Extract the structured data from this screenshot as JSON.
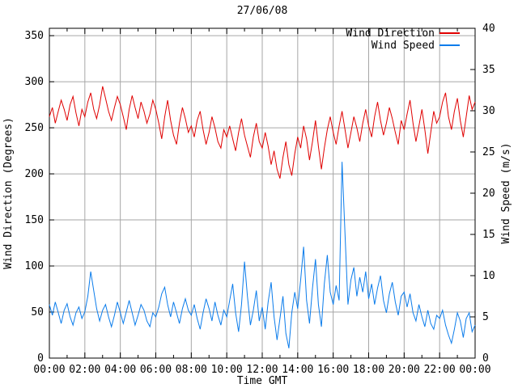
{
  "colors": {
    "background": "#ffffff",
    "frame": "#000000",
    "grid": "#a6a6a6",
    "direction_line": "#e00000",
    "speed_line": "#0b7ceb"
  },
  "chart_data": {
    "type": "line",
    "title": "27/06/08",
    "xlabel": "Time GMT",
    "ylabel_left": "Wind Direction (Degrees)",
    "ylabel_right": "Wind Speed (m/s)",
    "grid": true,
    "legend_position": "top-right-inside",
    "x_tick_labels": [
      "00:00",
      "02:00",
      "04:00",
      "06:00",
      "08:00",
      "10:00",
      "12:00",
      "14:00",
      "16:00",
      "18:00",
      "20:00",
      "22:00",
      "00:00"
    ],
    "x_minor_tick_every_minutes": 60,
    "x_range_minutes": [
      0,
      1440
    ],
    "x_step_minutes": 10,
    "y_left_ticks": [
      0,
      50,
      100,
      150,
      200,
      250,
      300,
      350
    ],
    "y_left_range": [
      0,
      358
    ],
    "y_right_ticks": [
      0,
      5,
      10,
      15,
      20,
      25,
      30,
      35,
      40
    ],
    "y_right_range": [
      0,
      40
    ],
    "series": [
      {
        "name": "Wind Direction",
        "axis": "left",
        "color": "#e00000",
        "values": [
          262,
          272,
          255,
          268,
          280,
          270,
          258,
          275,
          284,
          266,
          252,
          270,
          262,
          278,
          288,
          270,
          260,
          275,
          295,
          282,
          268,
          258,
          272,
          284,
          275,
          262,
          248,
          270,
          285,
          272,
          260,
          278,
          268,
          255,
          265,
          280,
          270,
          255,
          238,
          262,
          280,
          258,
          242,
          232,
          255,
          272,
          260,
          245,
          252,
          240,
          258,
          268,
          248,
          232,
          245,
          262,
          250,
          235,
          228,
          248,
          240,
          252,
          238,
          225,
          245,
          260,
          242,
          230,
          218,
          240,
          255,
          235,
          228,
          245,
          230,
          210,
          225,
          205,
          195,
          218,
          235,
          210,
          198,
          222,
          240,
          228,
          252,
          238,
          215,
          235,
          258,
          230,
          205,
          228,
          248,
          262,
          245,
          232,
          252,
          268,
          248,
          228,
          245,
          262,
          250,
          235,
          255,
          270,
          252,
          240,
          262,
          278,
          258,
          242,
          255,
          272,
          260,
          245,
          232,
          258,
          248,
          265,
          280,
          255,
          235,
          252,
          270,
          248,
          222,
          245,
          268,
          255,
          262,
          278,
          288,
          262,
          248,
          268,
          282,
          258,
          240,
          262,
          285,
          270,
          278
        ]
      },
      {
        "name": "Wind Speed",
        "axis": "right",
        "color": "#0b7ceb",
        "values": [
          6.5,
          5.2,
          6.8,
          5.5,
          4.2,
          5.8,
          6.6,
          5.0,
          4.0,
          5.5,
          6.2,
          4.8,
          5.6,
          7.5,
          10.5,
          8.2,
          6.0,
          4.5,
          5.8,
          6.5,
          5.0,
          3.8,
          5.2,
          6.8,
          5.5,
          4.2,
          5.6,
          7.0,
          5.5,
          4.0,
          5.2,
          6.5,
          5.8,
          4.5,
          3.8,
          5.5,
          5.0,
          6.2,
          7.8,
          8.6,
          6.5,
          5.0,
          6.8,
          5.5,
          4.2,
          6.0,
          7.2,
          5.8,
          5.2,
          6.5,
          4.8,
          3.5,
          5.5,
          7.2,
          6.0,
          4.5,
          6.8,
          5.2,
          4.0,
          5.8,
          5.0,
          7.0,
          9.0,
          5.5,
          3.2,
          6.5,
          11.7,
          7.5,
          4.0,
          5.8,
          8.2,
          4.5,
          6.2,
          3.5,
          6.8,
          9.2,
          5.0,
          2.2,
          4.8,
          7.5,
          3.0,
          1.2,
          5.5,
          8.0,
          6.0,
          9.5,
          13.5,
          7.0,
          4.2,
          8.5,
          12.0,
          6.5,
          3.8,
          9.0,
          12.5,
          8.0,
          6.5,
          8.8,
          7.0,
          23.8,
          15.0,
          6.5,
          9.5,
          11.0,
          7.5,
          9.8,
          8.0,
          10.5,
          7.2,
          9.0,
          6.5,
          8.5,
          10.0,
          7.0,
          5.5,
          7.8,
          9.2,
          6.8,
          5.2,
          7.5,
          8.0,
          6.2,
          7.8,
          5.5,
          4.5,
          6.5,
          5.0,
          3.8,
          5.8,
          4.2,
          3.5,
          5.2,
          4.8,
          5.8,
          4.0,
          2.8,
          1.8,
          3.5,
          5.5,
          4.5,
          2.5,
          4.8,
          5.5,
          3.2,
          4.0
        ]
      }
    ]
  }
}
